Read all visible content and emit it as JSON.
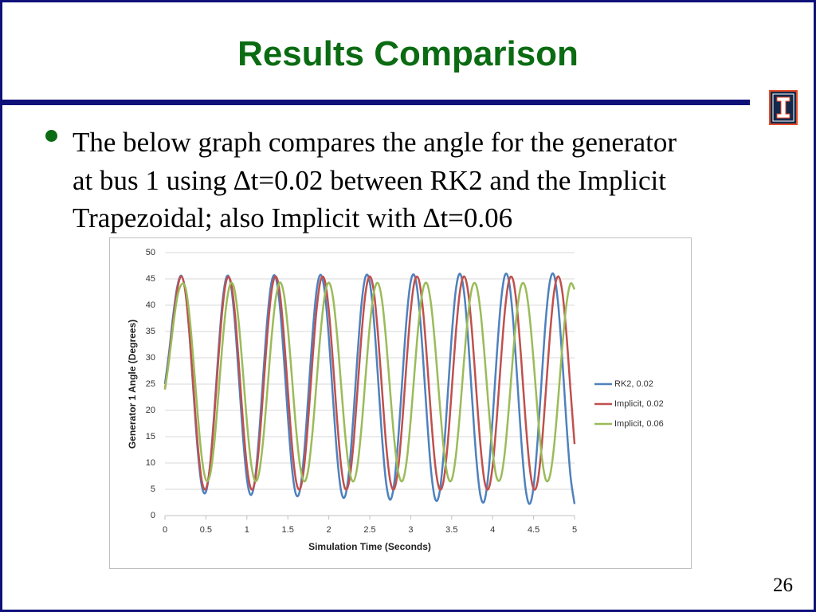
{
  "header": {
    "title": "Results Comparison"
  },
  "bullet": {
    "lines": [
      "The below graph compares the angle for the generator",
      "at bus 1 using ∆t=0.02 between RK2 and the Implicit",
      "Trapezoidal; also Implicit with ∆t=0.06"
    ]
  },
  "page_number": "26",
  "chart_data": {
    "type": "line",
    "x_label": "Simulation Time (Seconds)",
    "y_label": "Generator 1 Angle (Degrees)",
    "xlim": [
      0,
      5
    ],
    "xticks": [
      0,
      0.5,
      1,
      1.5,
      2,
      2.5,
      3,
      3.5,
      4,
      4.5,
      5
    ],
    "ylim": [
      0,
      50
    ],
    "yticks": [
      0,
      5,
      10,
      15,
      20,
      25,
      30,
      35,
      40,
      45,
      50
    ],
    "grid": true,
    "legend": "right",
    "x": [
      0,
      0.05,
      0.1,
      0.15,
      0.2,
      0.25,
      0.3,
      0.35,
      0.4,
      0.45,
      0.5,
      0.55,
      0.6,
      0.65,
      0.7,
      0.75,
      0.8,
      0.85,
      0.9,
      0.95,
      1,
      1.05,
      1.1,
      1.15,
      1.2,
      1.25,
      1.3,
      1.35,
      1.4,
      1.45,
      1.5,
      1.55,
      1.6,
      1.65,
      1.7,
      1.75,
      1.8,
      1.85,
      1.9,
      1.95,
      2,
      2.05,
      2.1,
      2.15,
      2.2,
      2.25,
      2.3,
      2.35,
      2.4,
      2.45,
      2.5,
      2.55,
      2.6,
      2.65,
      2.7,
      2.75,
      2.8,
      2.85,
      2.9,
      2.95,
      3,
      3.05,
      3.1,
      3.15,
      3.2,
      3.25,
      3.3,
      3.35,
      3.4,
      3.45,
      3.5,
      3.55,
      3.6,
      3.65,
      3.7,
      3.75,
      3.8,
      3.85,
      3.9,
      3.95,
      4,
      4.05,
      4.1,
      4.15,
      4.2,
      4.25,
      4.3,
      4.35,
      4.4,
      4.45,
      4.5,
      4.55,
      4.6,
      4.65,
      4.7,
      4.75,
      4.8,
      4.85,
      4.9,
      4.95,
      5
    ],
    "series": [
      {
        "name": "RK2, 0.02",
        "color": "#4f81bd",
        "values": [
          25,
          31,
          38,
          43.5,
          45.6,
          42.5,
          34.2,
          23.0,
          12.4,
          5.6,
          4.5,
          9.5,
          19.2,
          30.6,
          40.3,
          45.3,
          44.3,
          37.4,
          26.7,
          15.5,
          7.0,
          3.9,
          7.0,
          15.5,
          26.7,
          37.4,
          44.3,
          45.4,
          40.2,
          30.4,
          18.9,
          9.1,
          4.0,
          5.0,
          12.0,
          22.8,
          34.1,
          42.7,
          45.8,
          42.6,
          34.0,
          22.6,
          11.7,
          4.7,
          3.7,
          8.9,
          18.8,
          30.4,
          40.3,
          45.5,
          44.4,
          37.3,
          26.4,
          14.8,
          6.2,
          3.0,
          6.3,
          15.0,
          26.5,
          37.5,
          44.5,
          45.5,
          40.2,
          30.1,
          18.3,
          8.3,
          3.1,
          4.2,
          11.4,
          22.5,
          34.1,
          42.8,
          46.0,
          42.6,
          33.8,
          22.1,
          11.0,
          3.9,
          2.8,
          8.2,
          18.4,
          30.3,
          40.4,
          45.7,
          44.5,
          37.2,
          26.0,
          14.2,
          5.4,
          2.2,
          5.5,
          14.5,
          26.3,
          37.5,
          44.6,
          45.7,
          40.2,
          29.9,
          17.8,
          7.6,
          2.2
        ]
      },
      {
        "name": "Implicit, 0.02",
        "color": "#c0504d",
        "values": [
          24,
          30,
          37,
          43,
          45.5,
          42.5,
          34.5,
          23.8,
          13.5,
          6.6,
          5.1,
          9.4,
          18.4,
          29.3,
          39.0,
          44.7,
          44.7,
          39.1,
          29.3,
          18.4,
          9.5,
          5.1,
          6.6,
          13.5,
          23.8,
          34.5,
          42.5,
          45.5,
          42.6,
          34.6,
          23.9,
          13.5,
          6.6,
          5.1,
          9.4,
          18.4,
          29.3,
          39.0,
          44.7,
          44.8,
          39.1,
          29.4,
          18.5,
          9.5,
          5.1,
          6.6,
          13.4,
          23.8,
          34.5,
          42.5,
          45.5,
          42.6,
          34.6,
          23.9,
          13.5,
          6.6,
          5.1,
          9.4,
          18.3,
          29.2,
          39.0,
          44.7,
          44.8,
          39.1,
          29.4,
          18.5,
          9.5,
          5.1,
          6.5,
          13.4,
          23.7,
          34.5,
          42.5,
          45.5,
          42.6,
          34.6,
          23.9,
          13.6,
          6.6,
          5.1,
          9.4,
          18.3,
          29.2,
          39.0,
          44.7,
          44.8,
          39.1,
          29.5,
          18.5,
          9.5,
          5.1,
          6.5,
          13.4,
          23.7,
          34.4,
          42.5,
          45.5,
          42.6,
          34.7,
          24.0,
          13.6
        ]
      },
      {
        "name": "Implicit, 0.06",
        "color": "#9bbb59",
        "values": [
          24,
          29.5,
          36,
          41.5,
          43.9,
          43.4,
          37.9,
          29.0,
          19.2,
          11.0,
          6.8,
          7.7,
          13.4,
          22.5,
          32.3,
          40.2,
          44.1,
          42.9,
          36.8,
          27.7,
          17.9,
          10.1,
          6.6,
          8.2,
          14.5,
          23.8,
          33.6,
          41.0,
          44.3,
          42.3,
          35.7,
          26.3,
          16.6,
          9.4,
          6.5,
          8.8,
          15.7,
          25.2,
          34.8,
          41.8,
          44.3,
          41.6,
          34.5,
          24.9,
          15.4,
          8.7,
          6.5,
          9.5,
          16.9,
          26.6,
          36.0,
          42.4,
          44.2,
          40.9,
          33.3,
          23.5,
          14.3,
          8.1,
          6.6,
          10.3,
          18.2,
          28.0,
          37.1,
          43.0,
          44.1,
          40.0,
          32.0,
          22.1,
          13.2,
          7.6,
          6.8,
          11.2,
          19.4,
          29.3,
          38.1,
          43.4,
          43.8,
          39.1,
          30.7,
          20.8,
          12.2,
          7.2,
          7.2,
          12.2,
          20.8,
          30.7,
          39.1,
          43.8,
          43.4,
          38.1,
          29.4,
          19.5,
          11.2,
          6.8,
          7.6,
          13.2,
          22.1,
          32.0,
          40.0,
          44.1,
          43.0
        ]
      }
    ]
  }
}
